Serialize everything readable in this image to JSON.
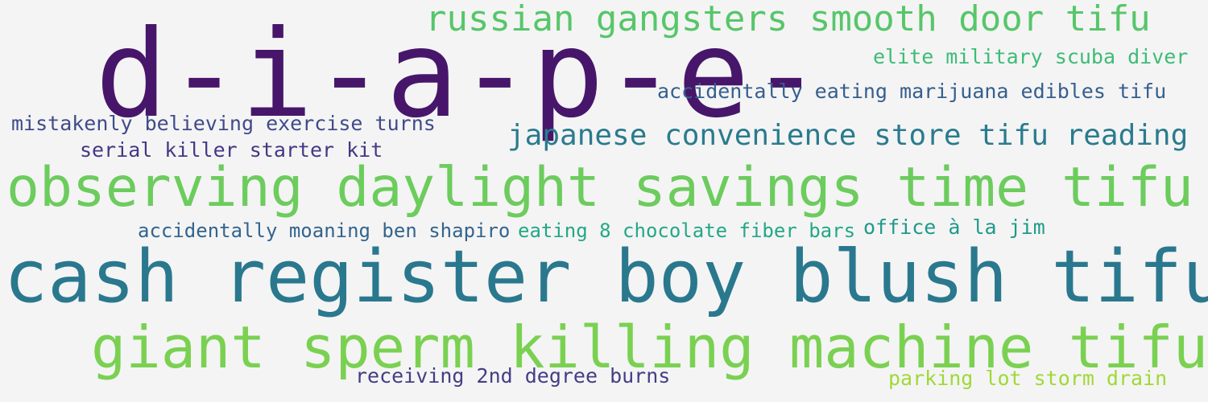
{
  "words": [
    {
      "text": "d-i-a-p-e-",
      "color": "#47166b"
    },
    {
      "text": "russian gangsters smooth door tifu",
      "color": "#57c66a"
    },
    {
      "text": "elite military scuba diver",
      "color": "#3dbb77"
    },
    {
      "text": "accidentally eating marijuana edibles tifu",
      "color": "#355f8d"
    },
    {
      "text": "mistakenly believing exercise turns",
      "color": "#404b8a"
    },
    {
      "text": "serial killer starter kit",
      "color": "#453885"
    },
    {
      "text": "japanese convenience store tifu reading",
      "color": "#2a7b8e"
    },
    {
      "text": "observing daylight savings time tifu",
      "color": "#6ccc5d"
    },
    {
      "text": "accidentally moaning ben shapiro",
      "color": "#33648e"
    },
    {
      "text": "eating 8 chocolate fiber bars",
      "color": "#22a886"
    },
    {
      "text": "office à la jim",
      "color": "#1f9a8a"
    },
    {
      "text": "cash register boy blush tifu",
      "color": "#2a788e"
    },
    {
      "text": "giant sperm killing machine tifu",
      "color": "#7ad151"
    },
    {
      "text": "receiving 2nd degree burns",
      "color": "#433e85"
    },
    {
      "text": "parking lot storm drain",
      "color": "#9fd936"
    }
  ]
}
